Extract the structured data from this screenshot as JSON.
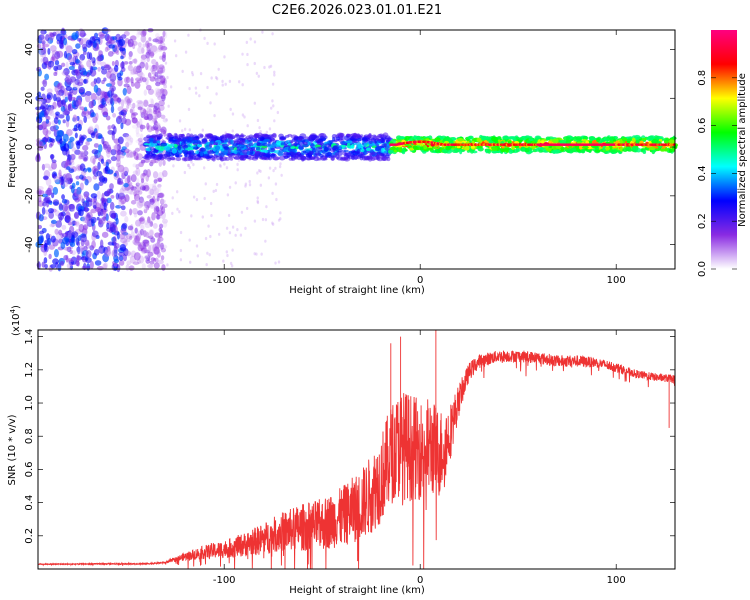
{
  "title": "C2E6.2026.023.01.01.E21",
  "chart_data": [
    {
      "type": "heatmap",
      "name": "spectrogram",
      "xlabel": "Height of straight line (km)",
      "ylabel": "Frequency (Hz)",
      "xlim": [
        -195,
        130
      ],
      "ylim": [
        -50,
        48
      ],
      "xticks": [
        -100,
        0,
        100
      ],
      "yticks": [
        -40,
        -20,
        0,
        20,
        40
      ],
      "colorbar": {
        "label": "Normalized spectral amplitude",
        "range": [
          0.0,
          1.0
        ],
        "ticks": [
          0.0,
          0.2,
          0.4,
          0.6,
          0.8
        ],
        "tick_labels": [
          "0.0",
          "0.2",
          "0.4",
          "0.6",
          "0.8"
        ],
        "colors": [
          "#ffffff",
          "#8a2be2",
          "#0000ff",
          "#00ffff",
          "#00ff00",
          "#ffff00",
          "#ff0000",
          "#ff0080"
        ]
      },
      "regions": [
        {
          "x": [
            -195,
            -130
          ],
          "y": [
            -50,
            48
          ],
          "amplitude_range": [
            0.05,
            0.35
          ],
          "description": "broadband noise"
        },
        {
          "x": [
            -140,
            -15
          ],
          "center_hz": 0,
          "width_hz": 10,
          "amplitude_range": [
            0.2,
            0.55
          ]
        },
        {
          "x": [
            -15,
            130
          ],
          "center_hz": 1,
          "width_hz": 6,
          "amplitude_range": [
            0.5,
            0.95
          ]
        }
      ]
    },
    {
      "type": "line",
      "name": "snr",
      "xlabel": "Height of straight line (km)",
      "ylabel": "SNR (10 * v/v)",
      "exponent_label": "(x10",
      "exponent_power": "4",
      "exponent_close": ")",
      "color": "#ee3333",
      "xlim": [
        -195,
        130
      ],
      "ylim": [
        0,
        14400
      ],
      "xticks": [
        -100,
        0,
        100
      ],
      "yticks": [
        2000,
        4000,
        6000,
        8000,
        10000,
        12000,
        14000
      ],
      "ytick_labels": [
        "0.2",
        "0.4",
        "0.6",
        "0.8",
        "1.0",
        "1.2",
        "1.4"
      ],
      "series": [
        {
          "name": "SNR",
          "x": [
            -195,
            -180,
            -160,
            -140,
            -130,
            -120,
            -110,
            -100,
            -90,
            -80,
            -70,
            -60,
            -50,
            -40,
            -30,
            -25,
            -20,
            -15,
            -10,
            -5,
            0,
            5,
            10,
            15,
            20,
            25,
            30,
            40,
            50,
            60,
            70,
            80,
            90,
            100,
            110,
            120,
            130
          ],
          "y": [
            300,
            300,
            320,
            320,
            400,
            800,
            1100,
            1300,
            1600,
            2000,
            2500,
            2800,
            3000,
            3500,
            4300,
            5000,
            6000,
            7500,
            8200,
            8000,
            7800,
            8000,
            7500,
            8500,
            10500,
            12000,
            12600,
            12900,
            12900,
            12800,
            12600,
            12600,
            12500,
            12200,
            11800,
            11600,
            11500
          ],
          "noise_amplitude": [
            50,
            50,
            60,
            60,
            100,
            400,
            700,
            900,
            1200,
            1600,
            2000,
            2400,
            2600,
            3000,
            3600,
            4000,
            4500,
            5000,
            5500,
            5500,
            5000,
            5000,
            4500,
            3000,
            1500,
            900,
            700,
            600,
            600,
            600,
            600,
            600,
            500,
            500,
            400,
            400,
            400
          ]
        }
      ],
      "spikes": [
        {
          "x": -15,
          "y": 13600
        },
        {
          "x": -10,
          "y": 14000
        },
        {
          "x": 8,
          "y": 14400
        },
        {
          "x": 127,
          "y": 8500
        }
      ]
    }
  ]
}
